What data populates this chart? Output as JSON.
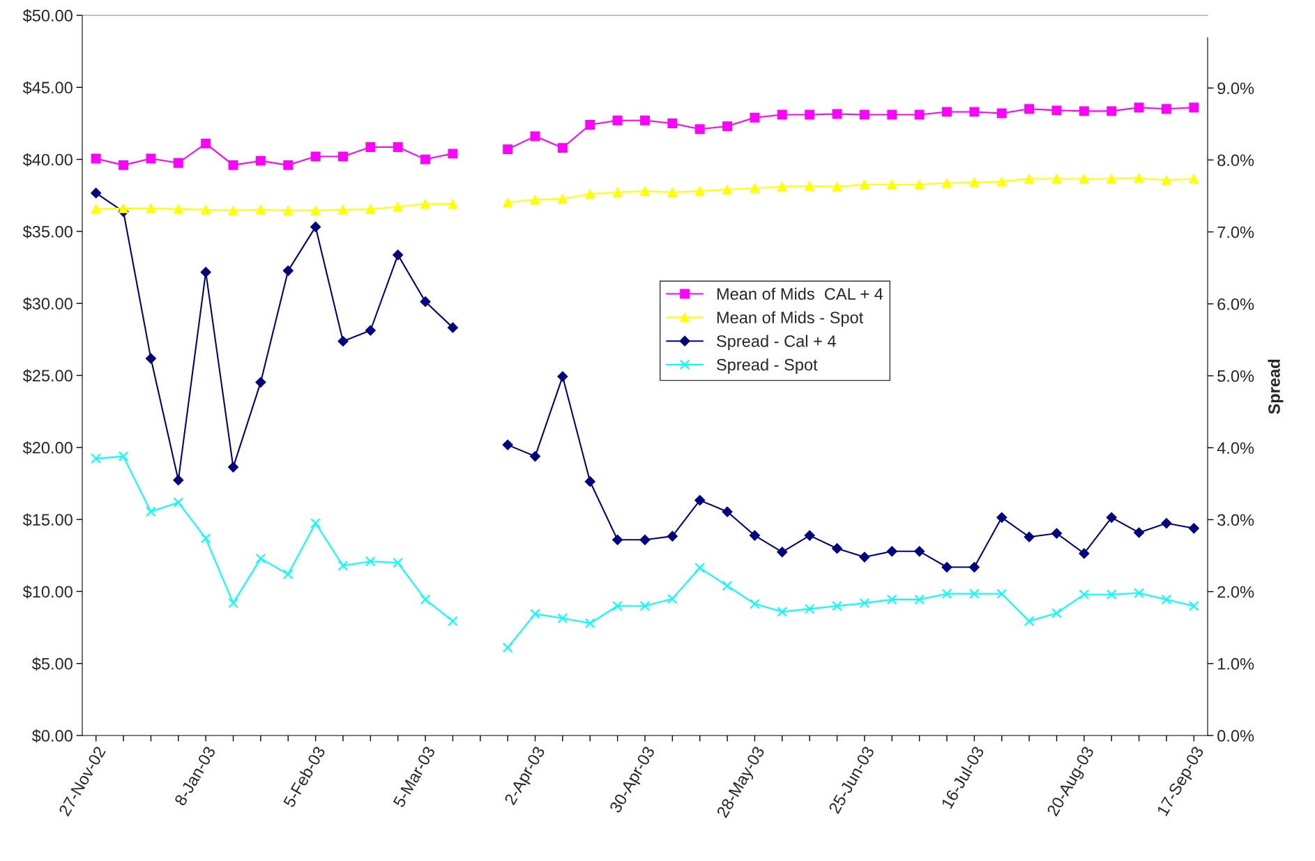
{
  "chart_data": {
    "type": "line",
    "categories": [
      "27-Nov-02",
      null,
      null,
      null,
      "8-Jan-03",
      null,
      null,
      null,
      "5-Feb-03",
      null,
      null,
      null,
      "5-Mar-03",
      null,
      null,
      null,
      "2-Apr-03",
      null,
      null,
      null,
      "30-Apr-03",
      null,
      null,
      null,
      "28-May-03",
      null,
      null,
      null,
      "25-Jun-03",
      null,
      null,
      null,
      "16-Jul-03",
      null,
      null,
      null,
      "20-Aug-03",
      null,
      null,
      null,
      "17-Sep-03"
    ],
    "y2label": "Spread",
    "ylim": [
      0,
      50
    ],
    "yticks": [
      {
        "value": 0,
        "label": "$0.00"
      },
      {
        "value": 5,
        "label": "$5.00"
      },
      {
        "value": 10,
        "label": "$10.00"
      },
      {
        "value": 15,
        "label": "$15.00"
      },
      {
        "value": 20,
        "label": "$20.00"
      },
      {
        "value": 25,
        "label": "$25.00"
      },
      {
        "value": 30,
        "label": "$30.00"
      },
      {
        "value": 35,
        "label": "$35.00"
      },
      {
        "value": 40,
        "label": "$40.00"
      },
      {
        "value": 45,
        "label": "$45.00"
      },
      {
        "value": 50,
        "label": "$50.00"
      }
    ],
    "y2lim": [
      0,
      9.7
    ],
    "y2ticks": [
      {
        "value": 0,
        "label": "0.0%"
      },
      {
        "value": 1,
        "label": "1.0%"
      },
      {
        "value": 2,
        "label": "2.0%"
      },
      {
        "value": 3,
        "label": "3.0%"
      },
      {
        "value": 4,
        "label": "4.0%"
      },
      {
        "value": 5,
        "label": "5.0%"
      },
      {
        "value": 6,
        "label": "6.0%"
      },
      {
        "value": 7,
        "label": "7.0%"
      },
      {
        "value": 8,
        "label": "8.0%"
      },
      {
        "value": 9,
        "label": "9.0%"
      }
    ],
    "grid": false,
    "legend": "center right",
    "line_style": "solid",
    "series": [
      {
        "name": "Mean of Mids  CAL + 4",
        "color": "#ff00ff",
        "marker": "square",
        "values": [
          40.05,
          39.6,
          40.05,
          39.75,
          41.1,
          39.6,
          39.9,
          39.6,
          40.2,
          40.2,
          40.85,
          40.85,
          40.0,
          40.4,
          null,
          40.7,
          41.6,
          40.8,
          42.4,
          42.7,
          42.7,
          42.5,
          42.1,
          42.3,
          42.9,
          43.1,
          43.1,
          43.15,
          43.1,
          43.1,
          43.1,
          43.3,
          43.3,
          43.2,
          43.5,
          43.4,
          43.35,
          43.35,
          43.6,
          43.5,
          43.6
        ]
      },
      {
        "name": "Mean of Mids - Spot",
        "color": "#ffff00",
        "marker": "triangle",
        "values": [
          36.55,
          36.6,
          36.6,
          36.55,
          36.5,
          36.45,
          36.5,
          36.45,
          36.45,
          36.5,
          36.55,
          36.7,
          36.9,
          36.9,
          null,
          37.0,
          37.2,
          37.25,
          37.6,
          37.7,
          37.8,
          37.7,
          37.8,
          37.9,
          38.0,
          38.1,
          38.15,
          38.1,
          38.25,
          38.25,
          38.25,
          38.35,
          38.4,
          38.45,
          38.65,
          38.65,
          38.65,
          38.65,
          38.7,
          38.55,
          38.65
        ]
      },
      {
        "name": "Spread - Cal + 4",
        "color": "#000080",
        "marker": "diamond",
        "axis": "y2",
        "values": [
          7.54,
          7.28,
          5.24,
          3.55,
          6.44,
          3.73,
          4.91,
          6.46,
          7.07,
          5.48,
          5.63,
          6.68,
          6.03,
          5.67,
          null,
          4.04,
          3.88,
          4.99,
          3.53,
          2.72,
          2.72,
          2.77,
          3.27,
          3.11,
          2.78,
          2.55,
          2.78,
          2.6,
          2.48,
          2.56,
          2.56,
          2.34,
          2.34,
          3.03,
          2.76,
          2.81,
          2.53,
          3.03,
          2.82,
          2.95,
          2.88
        ]
      },
      {
        "name": "Spread - Spot",
        "color": "#00ffff",
        "marker": "cross",
        "axis": "y2",
        "values": [
          3.85,
          3.88,
          3.11,
          3.24,
          2.74,
          1.84,
          2.46,
          2.24,
          2.95,
          2.36,
          2.42,
          2.4,
          1.89,
          1.59,
          null,
          1.22,
          1.69,
          1.63,
          1.56,
          1.8,
          1.8,
          1.9,
          2.33,
          2.08,
          1.83,
          1.72,
          1.76,
          1.8,
          1.84,
          1.89,
          1.89,
          1.97,
          1.97,
          1.97,
          1.59,
          1.7,
          1.96,
          1.96,
          1.98,
          1.89,
          1.8
        ]
      }
    ]
  }
}
